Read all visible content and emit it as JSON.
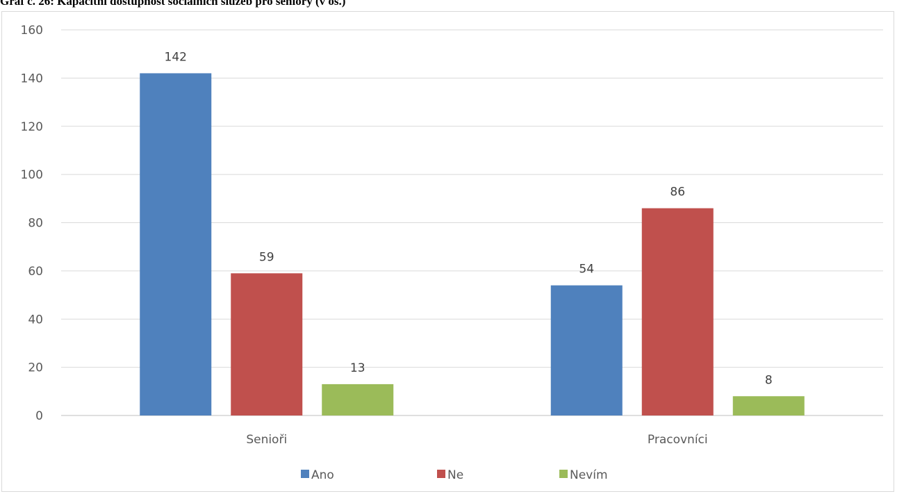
{
  "chart_data": {
    "type": "bar",
    "title": "Graf č. 26: Kapacitní dostupnost sociálních služeb pro seniory (v os.)",
    "categories": [
      "Senioři",
      "Pracovníci"
    ],
    "series": [
      {
        "name": "Ano",
        "values": [
          142,
          54
        ],
        "color": "#4f81bd"
      },
      {
        "name": "Ne",
        "values": [
          59,
          86
        ],
        "color": "#c0504d"
      },
      {
        "name": "Nevím",
        "values": [
          13,
          8
        ],
        "color": "#9bbb59"
      }
    ],
    "y_ticks": [
      "0",
      "20",
      "40",
      "60",
      "80",
      "100",
      "120",
      "140",
      "160"
    ],
    "ylim": [
      0,
      160
    ],
    "grid": true,
    "legend_position": "bottom"
  }
}
